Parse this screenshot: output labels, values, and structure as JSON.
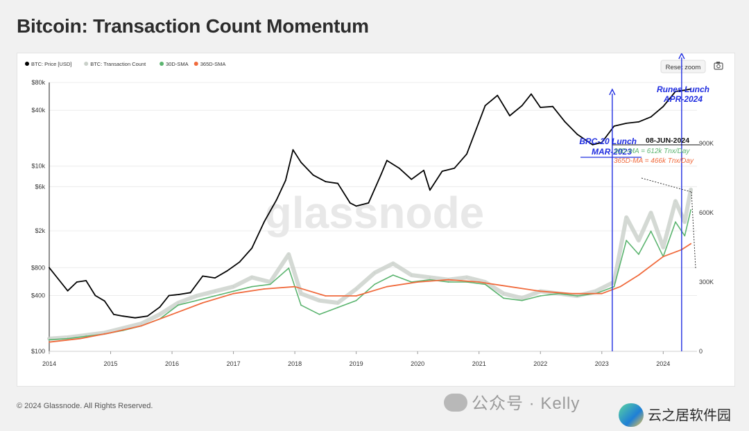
{
  "title": "Bitcoin: Transaction Count Momentum",
  "footer": "© 2024 Glassnode. All Rights Reserved.",
  "watermark_center": "glassnode",
  "watermark_bottom": "公众号 · Kelly",
  "brand": "云之居软件园",
  "reset_zoom": "Reset zoom",
  "camera_icon": "camera-icon",
  "annotations": {
    "brc20_line1": "BRC-20 Lunch",
    "brc20_line2": "MAR-2023",
    "runes_line1": "Runes Lunch",
    "runes_line2": "APR-2024",
    "date": "08-JUN-2024",
    "ma30": "30D-MA = 612k Tnx/Day",
    "ma365": "365D-MA = 466k Tnx/Day"
  },
  "chart_data": {
    "type": "line",
    "legend_position": "top-left",
    "legend": [
      {
        "name": "BTC: Price [USD]",
        "color": "#000000"
      },
      {
        "name": "BTC: Transaction Count",
        "color": "#c9d0c9"
      },
      {
        "name": "30D-SMA",
        "color": "#5bb46f"
      },
      {
        "name": "365D-SMA",
        "color": "#f06a3c"
      }
    ],
    "x_ticks": [
      "2014",
      "2015",
      "2016",
      "2017",
      "2018",
      "2019",
      "2020",
      "2021",
      "2022",
      "2023",
      "2024"
    ],
    "x_range": [
      2014.0,
      2024.55
    ],
    "y_left": {
      "scale": "log",
      "ticks": [
        "$80k",
        "$40k",
        "$10k",
        "$6k",
        "$2k",
        "$800",
        "$400",
        "$100"
      ],
      "range": [
        100,
        80000
      ]
    },
    "y_right": {
      "scale": "linear",
      "ticks": [
        "900K",
        "600K",
        "300K",
        "0"
      ],
      "range": [
        0,
        900000
      ]
    },
    "series": [
      {
        "name": "BTC: Price [USD]",
        "axis": "left",
        "x": [
          2014.0,
          2014.15,
          2014.3,
          2014.45,
          2014.6,
          2014.75,
          2014.9,
          2015.05,
          2015.2,
          2015.4,
          2015.6,
          2015.8,
          2015.95,
          2016.1,
          2016.3,
          2016.5,
          2016.7,
          2016.9,
          2017.1,
          2017.3,
          2017.5,
          2017.7,
          2017.85,
          2017.97,
          2018.1,
          2018.3,
          2018.5,
          2018.7,
          2018.9,
          2019.0,
          2019.2,
          2019.4,
          2019.5,
          2019.7,
          2019.9,
          2020.1,
          2020.2,
          2020.4,
          2020.6,
          2020.8,
          2021.0,
          2021.1,
          2021.3,
          2021.5,
          2021.7,
          2021.85,
          2022.0,
          2022.2,
          2022.4,
          2022.6,
          2022.85,
          2023.0,
          2023.2,
          2023.4,
          2023.6,
          2023.8,
          2024.0,
          2024.2,
          2024.35,
          2024.45
        ],
        "y": [
          800,
          600,
          450,
          560,
          580,
          400,
          350,
          250,
          240,
          230,
          240,
          300,
          400,
          410,
          430,
          650,
          620,
          740,
          920,
          1300,
          2500,
          4300,
          7000,
          15000,
          11000,
          8000,
          6800,
          6500,
          4000,
          3700,
          4000,
          8000,
          11500,
          9500,
          7200,
          9000,
          5500,
          8800,
          9500,
          13500,
          30000,
          45000,
          58000,
          35000,
          45000,
          60000,
          43000,
          44000,
          30000,
          22000,
          17000,
          18000,
          27000,
          29000,
          30000,
          34000,
          44000,
          64000,
          66000,
          68000
        ]
      },
      {
        "name": "BTC: Transaction Count",
        "axis": "right",
        "x": [
          2014.0,
          2014.3,
          2014.6,
          2014.9,
          2015.2,
          2015.5,
          2015.8,
          2016.1,
          2016.4,
          2016.7,
          2017.0,
          2017.3,
          2017.6,
          2017.9,
          2018.1,
          2018.4,
          2018.7,
          2019.0,
          2019.3,
          2019.6,
          2019.9,
          2020.2,
          2020.5,
          2020.8,
          2021.1,
          2021.4,
          2021.7,
          2022.0,
          2022.3,
          2022.6,
          2022.9,
          2023.2,
          2023.4,
          2023.6,
          2023.8,
          2024.0,
          2024.2,
          2024.35,
          2024.45
        ],
        "y": [
          55000,
          60000,
          70000,
          80000,
          100000,
          120000,
          160000,
          210000,
          240000,
          260000,
          280000,
          320000,
          300000,
          420000,
          250000,
          220000,
          210000,
          270000,
          340000,
          380000,
          330000,
          320000,
          310000,
          320000,
          300000,
          250000,
          230000,
          260000,
          250000,
          240000,
          260000,
          300000,
          580000,
          480000,
          600000,
          450000,
          650000,
          560000,
          700000
        ]
      },
      {
        "name": "30D-SMA",
        "axis": "right",
        "x": [
          2014.0,
          2014.3,
          2014.6,
          2014.9,
          2015.2,
          2015.5,
          2015.8,
          2016.1,
          2016.4,
          2016.7,
          2017.0,
          2017.3,
          2017.6,
          2017.9,
          2018.1,
          2018.4,
          2018.7,
          2019.0,
          2019.3,
          2019.6,
          2019.9,
          2020.2,
          2020.5,
          2020.8,
          2021.1,
          2021.4,
          2021.7,
          2022.0,
          2022.3,
          2022.6,
          2022.9,
          2023.2,
          2023.4,
          2023.6,
          2023.8,
          2024.0,
          2024.2,
          2024.35,
          2024.45
        ],
        "y": [
          50000,
          55000,
          65000,
          75000,
          90000,
          110000,
          140000,
          200000,
          220000,
          240000,
          260000,
          280000,
          290000,
          360000,
          200000,
          160000,
          190000,
          220000,
          290000,
          330000,
          300000,
          310000,
          300000,
          300000,
          290000,
          230000,
          220000,
          240000,
          250000,
          240000,
          250000,
          280000,
          480000,
          420000,
          520000,
          410000,
          560000,
          500000,
          612000
        ]
      },
      {
        "name": "365D-SMA",
        "axis": "right",
        "x": [
          2014.0,
          2014.5,
          2015.0,
          2015.5,
          2016.0,
          2016.5,
          2017.0,
          2017.5,
          2018.0,
          2018.5,
          2019.0,
          2019.5,
          2020.0,
          2020.5,
          2021.0,
          2021.5,
          2022.0,
          2022.5,
          2023.0,
          2023.3,
          2023.6,
          2024.0,
          2024.3,
          2024.45
        ],
        "y": [
          40000,
          55000,
          80000,
          110000,
          160000,
          210000,
          250000,
          270000,
          280000,
          240000,
          240000,
          280000,
          300000,
          310000,
          300000,
          280000,
          260000,
          250000,
          250000,
          280000,
          330000,
          410000,
          440000,
          466000
        ]
      }
    ],
    "events": [
      {
        "x": 2023.17,
        "label": "BRC-20 Lunch MAR-2023"
      },
      {
        "x": 2024.3,
        "label": "Runes Lunch APR-2024"
      }
    ]
  }
}
